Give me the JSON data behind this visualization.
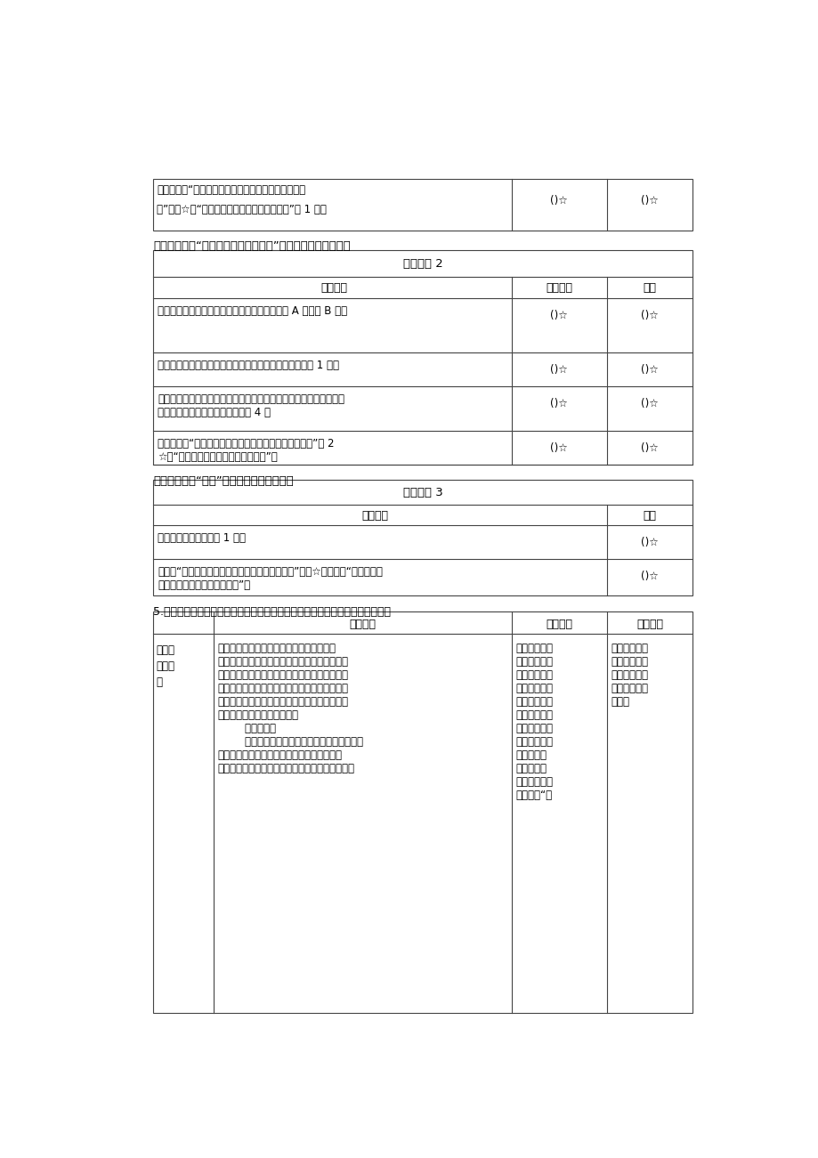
{
  "bg_color": "#ffffff",
  "t1_row1": "小组合作：“小组四人分工明确，都积极参与到活动中",
  "t1_row2": "来”得？☆；“小组分工不明确，但能完成任务”得 1 令。",
  "t1_col2": "()☆",
  "t1_col3": "()☆",
  "sec1_title": "三、活动二：“借助木板掄和移动重物”小组表现性评价量表。",
  "t2_title": "评价量表 2",
  "t2_h1": "评价标准",
  "t2_h2": "小组自评",
  "t2_h3": "师评",
  "t2_r1": "能多次挑战用一块小石块和木板将一块大石块从 A 处掄到 B 处得",
  "t2_r2": "能仔细观察大石块每一次移动的距离，并做好准确记录得 1 全。",
  "t2_r3a": "能准确画出每一次搄动大石块时的杠杆装置（标注杠杆的三个重要位",
  "t2_r3b": "置），并记录大石块移动的距离得 4 食",
  "t2_r4a": "小组合作：“小组四人分工明确，都积极参与到活动中来”得 2",
  "t2_r4b": "☆；“小组分工不明确，但能完成任务”得",
  "star": "()☆",
  "sec2_title": "四、活动三：“研讨”小组表现性评价量表。",
  "t3_title": "评价量表 3",
  "t3_h1": "评价标准",
  "t3_h2": "师评",
  "t3_r1": "小组能积极研讨问题得 1 食。",
  "t3_r2a": "能说出“当小石头离支点远，可以把大石块掄起来”得》☆；能说出“杠杆支点越",
  "t3_r2b": "高，大石块被搄动的距离越远”得",
  "sec3_text": "5.通过所学的方法解决实际问题，评价学生理论联系实践的能力。四、教学过程",
  "t4_h1": "学习活动",
  "t4_h2": "设计意图",
  "t4_h3": "效果评价",
  "t4_c1a": "（一）",
  "t4_c1b": "情境导",
  "t4_c1c": "入",
  "t4_c2": "创设情境：小明在借助斜面搞运被祽和衣物\n时，他的手表表带松动了，当被祽和衣物快速从\n斜面上滑下去时，他的手表也被带下去了，被压\n在了被祽和衣物下面。小明力气太小，无法搞开\n很重的被祽和衣物，拿出手表。同学们，你们有\n什么办法帮助小明拿出手表？\n        生说办法。\n        预设：拿一根比较长的木棒，一端抜在被祽\n和衣物下面，并离抜位置比较近位置，放一块\n砖头在木棒下面，手在木棒的另一端，向下用力。",
  "t4_c3": "六年级的学生\n在生活中已经\n用过杠杆这种\n简单机械，老\n师创设的问题\n情境，会让学\n生很容易地想\n到办法。引导\n学生上台演\n示，直观有\n效，教师可以\n直接指出“杠",
  "t4_c4": "教师观察学生\n的活动参与程\n度及回答，给\n予学生及时的\n鼓励。"
}
